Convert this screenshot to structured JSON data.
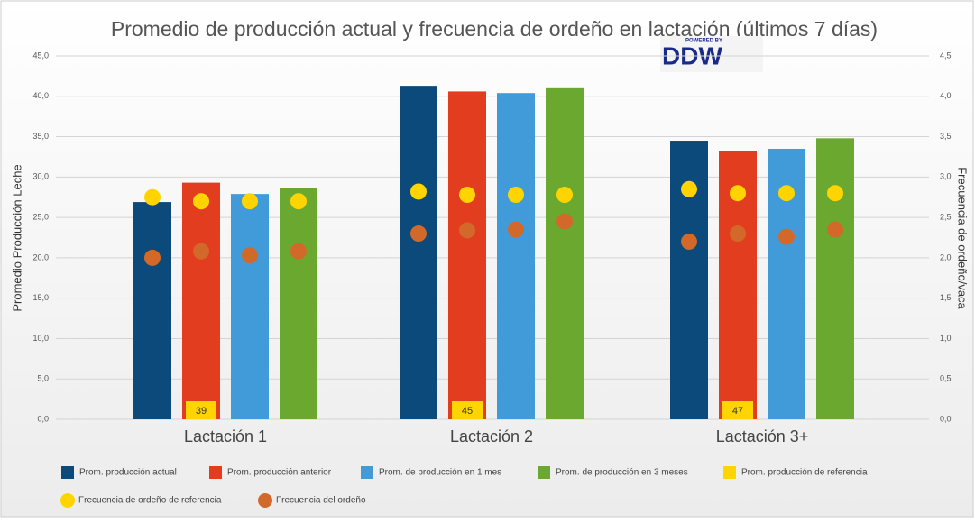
{
  "chart_data": {
    "type": "bar",
    "title": "Promedio de producción actual y frecuencia de ordeño en lactación (últimos 7 días)",
    "y_label": "Promedio Producción Leche",
    "y2_label": "Frecuencia de ordeño/vaca",
    "categories": [
      "Lactación 1",
      "Lactación 2",
      "Lactación 3+"
    ],
    "ylim": [
      0,
      45
    ],
    "yticks": [
      {
        "value": 0,
        "label": "0,0"
      },
      {
        "value": 5,
        "label": "5,0"
      },
      {
        "value": 10,
        "label": "10,0"
      },
      {
        "value": 15,
        "label": "15,0"
      },
      {
        "value": 20,
        "label": "20,0"
      },
      {
        "value": 25,
        "label": "25,0"
      },
      {
        "value": 30,
        "label": "30,0"
      },
      {
        "value": 35,
        "label": "35,0"
      },
      {
        "value": 40,
        "label": "40,0"
      },
      {
        "value": 45,
        "label": "45,0"
      }
    ],
    "y2lim": [
      0,
      4.5
    ],
    "y2ticks": [
      {
        "value": 0,
        "label": "0,0"
      },
      {
        "value": 0.5,
        "label": "0,5"
      },
      {
        "value": 1,
        "label": "1,0"
      },
      {
        "value": 1.5,
        "label": "1,5"
      },
      {
        "value": 2,
        "label": "2,0"
      },
      {
        "value": 2.5,
        "label": "2,5"
      },
      {
        "value": 3,
        "label": "3,0"
      },
      {
        "value": 3.5,
        "label": "3,5"
      },
      {
        "value": 4,
        "label": "4,0"
      },
      {
        "value": 4.5,
        "label": "4,5"
      }
    ],
    "grid": true,
    "series": [
      {
        "name": "Prom. producción actual",
        "color": "#0b4a7a",
        "values": [
          26.9,
          41.3,
          34.5
        ]
      },
      {
        "name": "Prom. producción anterior",
        "color": "#e33d1f",
        "values": [
          29.3,
          40.6,
          33.2
        ]
      },
      {
        "name": "Prom. de producción en 1 mes",
        "color": "#419bd8",
        "values": [
          27.9,
          40.4,
          33.5
        ]
      },
      {
        "name": "Prom. de producción en 3 meses",
        "color": "#6ba82f",
        "values": [
          28.6,
          41.0,
          34.8
        ]
      },
      {
        "name": "Prom. producción de referencia",
        "color": "#ffd400",
        "values": [
          39,
          45,
          47
        ]
      },
      {
        "name": "Frecuencia de ordeño de referencia",
        "color": "#ffd400",
        "axis": "y2",
        "values": [
          [
            2.75,
            2.7,
            2.7,
            2.7
          ],
          [
            2.82,
            2.78,
            2.78,
            2.78
          ],
          [
            2.85,
            2.8,
            2.8,
            2.8
          ]
        ]
      },
      {
        "name": "Frecuencia del ordeño",
        "color": "#d2692a",
        "axis": "y2",
        "values": [
          [
            2.0,
            2.08,
            2.03,
            2.08
          ],
          [
            2.3,
            2.34,
            2.35,
            2.45
          ],
          [
            2.2,
            2.3,
            2.26,
            2.35
          ]
        ]
      }
    ]
  },
  "logo": {
    "tagline": "POWERED BY",
    "name": "DDW"
  }
}
